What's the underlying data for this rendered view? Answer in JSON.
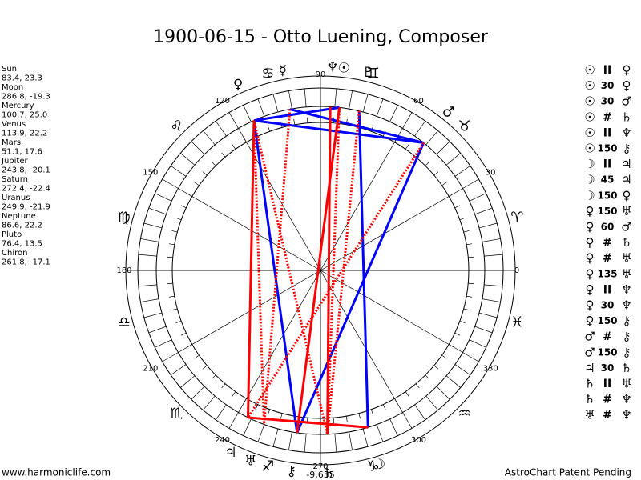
{
  "title": "1900-06-15 - Otto Luening, Composer",
  "planets": [
    {
      "name": "Sun",
      "glyph": "☉",
      "position": "83.4, 23.3"
    },
    {
      "name": "Moon",
      "glyph": "☽",
      "position": "286.8, -19.3"
    },
    {
      "name": "Mercury",
      "glyph": "☿",
      "position": "100.7, 25.0"
    },
    {
      "name": "Venus",
      "glyph": "♀",
      "position": "113.9, 22.2"
    },
    {
      "name": "Mars",
      "glyph": "♂",
      "position": "51.1, 17.6"
    },
    {
      "name": "Jupiter",
      "glyph": "♃",
      "position": "243.8, -20.1"
    },
    {
      "name": "Saturn",
      "glyph": "♄",
      "position": "272.4, -22.4"
    },
    {
      "name": "Uranus",
      "glyph": "♅",
      "position": "249.9, -21.9"
    },
    {
      "name": "Neptune",
      "glyph": "♆",
      "position": "86.6, 22.2"
    },
    {
      "name": "Pluto",
      "glyph": "♇",
      "position": "76.4, 13.5"
    },
    {
      "name": "Chiron",
      "glyph": "⚷",
      "position": "261.8, -17.1"
    }
  ],
  "degree_labels": [
    0,
    30,
    60,
    90,
    120,
    150,
    180,
    210,
    240,
    270,
    300,
    330
  ],
  "bottom_label": "-9,655",
  "signs": [
    "♈",
    "♉",
    "♊",
    "♋",
    "♌",
    "♍",
    "♎",
    "♏",
    "♐",
    "♑",
    "♒",
    "♓"
  ],
  "aspects": [
    [
      "☉",
      "II",
      "♀"
    ],
    [
      "☉",
      "30",
      "♀"
    ],
    [
      "☉",
      "30",
      "♂"
    ],
    [
      "☉",
      "#",
      "♄"
    ],
    [
      "☉",
      "II",
      "♆"
    ],
    [
      "☉",
      "150",
      "⚷"
    ],
    [
      "☽",
      "II",
      "♃"
    ],
    [
      "☽",
      "45",
      "♃"
    ],
    [
      "☽",
      "150",
      "♀"
    ],
    [
      "♀",
      "150",
      "♅"
    ],
    [
      "♀",
      "60",
      "♂"
    ],
    [
      "♀",
      "#",
      "♄"
    ],
    [
      "♀",
      "#",
      "♅"
    ],
    [
      "♀",
      "135",
      "♅"
    ],
    [
      "♀",
      "II",
      "♆"
    ],
    [
      "♀",
      "30",
      "♆"
    ],
    [
      "♀",
      "150",
      "⚷"
    ],
    [
      "♂",
      "#",
      "⚷"
    ],
    [
      "♂",
      "150",
      "⚷"
    ],
    [
      "♃",
      "30",
      "♄"
    ],
    [
      "♄",
      "II",
      "♅"
    ],
    [
      "♄",
      "#",
      "♆"
    ],
    [
      "♅",
      "#",
      "♆"
    ]
  ],
  "footer_left": "www.harmoniclife.com",
  "footer_right": "AstroChart Patent Pending"
}
